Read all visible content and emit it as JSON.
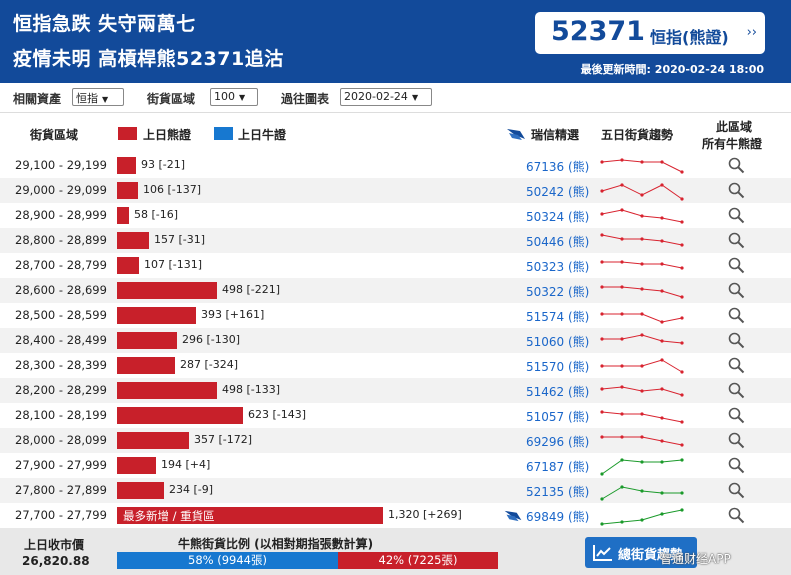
{
  "header": {
    "headline_1": "恒指急跌 失守兩萬七",
    "headline_2": "疫情未明 高槓桿熊52371追沽",
    "price": "52371",
    "price_link": "恒指(熊證)",
    "price_arrow": "››",
    "update_label": "最後更新時間: 2020-02-24 18:00"
  },
  "filters": {
    "asset_label": "相關資產",
    "asset_value": "恒指",
    "range_label": "街貨區域",
    "range_value": "100",
    "history_label": "過往圖表",
    "history_value": "2020-02-24",
    "caret": "▼"
  },
  "columns": {
    "range": "街貨區域",
    "bear": "上日熊證",
    "bull": "上日牛證",
    "pick": "瑞信精選",
    "trend": "五日街貨趨勢",
    "all_line1": "此區域",
    "all_line2": "所有牛熊證"
  },
  "colors": {
    "header": "#124a9a",
    "bear": "#c8202a",
    "bull": "#1778d0",
    "trend_down": "#d8232f",
    "trend_up": "#1a9a2a",
    "link": "#1a66c9"
  },
  "icons": {
    "zoom": "magnifier-icon",
    "logo": "credit-suisse-sail-icon",
    "chart": "line-chart-icon"
  },
  "chart_data": {
    "type": "bar",
    "rows": [
      {
        "range": "29,100 - 29,199",
        "value": 93,
        "label": "93 [-21]",
        "code": "67136 (熊)",
        "trend": "down",
        "spark": [
          3,
          2,
          3,
          3,
          8
        ]
      },
      {
        "range": "29,000 - 29,099",
        "value": 106,
        "label": "106 [-137]",
        "code": "50242 (熊)",
        "trend": "down",
        "spark": [
          5,
          2,
          7,
          2,
          9
        ]
      },
      {
        "range": "28,900 - 28,999",
        "value": 58,
        "label": "58 [-16]",
        "code": "50324 (熊)",
        "trend": "down",
        "spark": [
          4,
          2,
          5,
          6,
          8
        ]
      },
      {
        "range": "28,800 - 28,899",
        "value": 157,
        "label": "157 [-31]",
        "code": "50446 (熊)",
        "trend": "down",
        "spark": [
          2,
          4,
          4,
          5,
          7
        ]
      },
      {
        "range": "28,700 - 28,799",
        "value": 107,
        "label": "107 [-131]",
        "code": "50323 (熊)",
        "trend": "down",
        "spark": [
          3,
          3,
          4,
          4,
          6
        ]
      },
      {
        "range": "28,600 - 28,699",
        "value": 498,
        "label": "498 [-221]",
        "code": "50322 (熊)",
        "trend": "down",
        "spark": [
          3,
          3,
          4,
          5,
          8
        ]
      },
      {
        "range": "28,500 - 28,599",
        "value": 393,
        "label": "393 [+161]",
        "code": "51574 (熊)",
        "trend": "down",
        "spark": [
          4,
          4,
          4,
          8,
          6
        ]
      },
      {
        "range": "28,400 - 28,499",
        "value": 296,
        "label": "296 [-130]",
        "code": "51060 (熊)",
        "trend": "down",
        "spark": [
          4,
          4,
          2,
          5,
          6
        ]
      },
      {
        "range": "28,300 - 28,399",
        "value": 287,
        "label": "287 [-324]",
        "code": "51570 (熊)",
        "trend": "down",
        "spark": [
          5,
          5,
          5,
          2,
          8
        ]
      },
      {
        "range": "28,200 - 28,299",
        "value": 498,
        "label": "498 [-133]",
        "code": "51462 (熊)",
        "trend": "down",
        "spark": [
          4,
          3,
          5,
          4,
          7
        ]
      },
      {
        "range": "28,100 - 28,199",
        "value": 623,
        "label": "623 [-143]",
        "code": "51057 (熊)",
        "trend": "down",
        "spark": [
          3,
          4,
          4,
          6,
          8
        ]
      },
      {
        "range": "28,000 - 28,099",
        "value": 357,
        "label": "357 [-172]",
        "code": "69296 (熊)",
        "trend": "down",
        "spark": [
          3,
          3,
          3,
          5,
          7
        ]
      },
      {
        "range": "27,900 - 27,999",
        "value": 194,
        "label": "194 [+4]",
        "code": "67187 (熊)",
        "trend": "up",
        "spark": [
          9,
          2,
          3,
          3,
          2
        ]
      },
      {
        "range": "27,800 - 27,899",
        "value": 234,
        "label": "234 [-9]",
        "code": "52135 (熊)",
        "trend": "up",
        "spark": [
          9,
          3,
          5,
          6,
          6
        ]
      },
      {
        "range": "27,700 - 27,799",
        "value": 1320,
        "label": "1,320 [+269]",
        "code": "69849 (熊)",
        "trend": "up",
        "spark": [
          9,
          8,
          7,
          4,
          2
        ],
        "tag": "最多新增 / 重貨區",
        "logo": true
      }
    ],
    "max_value": 1320
  },
  "footer": {
    "prev_close_label": "上日收市價",
    "prev_close_value": "26,820.88",
    "ratio_title": "牛熊街貨比例 (以相對期指張數計算)",
    "bull_percent": 58,
    "bull_text": "58% (9944張)",
    "bear_text": "42% (7225張)",
    "button_label": "總街貨趨勢",
    "watermark": "智通财经APP"
  }
}
